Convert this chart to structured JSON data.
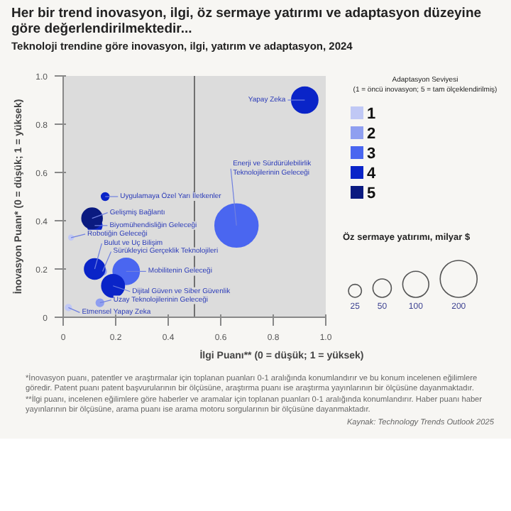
{
  "chart_data": {
    "type": "bubble",
    "title": "Her bir trend inovasyon, ilgi, öz sermaye yatırımı ve adaptasyon düzeyine göre değerlendirilmektedir...",
    "subtitle": "Teknoloji trendine göre inovasyon, ilgi, yatırım ve adaptasyon, 2024",
    "xlabel": "İlgi Puanı** (0 = düşük; 1 = yüksek)",
    "ylabel": "İnovasyon Puanı* (0 = düşük; 1 = yüksek)",
    "legend_title": "Adaptasyon Seviyesi\n(1 = öncü inovasyon; 5 = tam ölçeklendirilmiş)",
    "xlim": [
      0,
      1
    ],
    "ylim": [
      0,
      1
    ],
    "xticks": [
      0,
      0.2,
      0.4,
      0.6,
      0.8,
      {
        "value": 1,
        "label": "1.0"
      }
    ],
    "yticks": [
      0,
      0.2,
      0.4,
      0.6,
      0.8,
      {
        "value": 1,
        "label": "1.0"
      }
    ],
    "grid": false,
    "legend": "right",
    "size_legend": [
      25,
      50,
      100,
      200
    ],
    "ref_lines": [
      {
        "axis": "x",
        "value": 0.5,
        "color": "#707070"
      }
    ],
    "series": [
      {
        "name": "1",
        "color": "#c0c8f5",
        "x": [
          0.03,
          0.02
        ],
        "values": [
          0.33,
          0.04
        ],
        "sizes": [
          3,
          5
        ]
      },
      {
        "name": "2",
        "color": "#8f9ff0",
        "x": [
          0.15,
          0.14
        ],
        "values": [
          0.19,
          0.06
        ],
        "sizes": [
          8,
          8
        ]
      },
      {
        "name": "3",
        "color": "#4a66f0",
        "x": [
          0.66,
          0.24
        ],
        "values": [
          0.38,
          0.19
        ],
        "sizes": [
          270,
          100
        ]
      },
      {
        "name": "4",
        "color": "#0a24c8",
        "x": [
          0.92,
          0.16,
          0.12,
          0.12,
          0.19
        ],
        "values": [
          0.9,
          0.5,
          0.38,
          0.2,
          0.13
        ],
        "sizes": [
          100,
          8,
          30,
          60,
          75
        ]
      },
      {
        "name": "5",
        "color": "#0a1a80",
        "x": [
          0.11
        ],
        "values": [
          0.41
        ],
        "sizes": [
          60
        ]
      }
    ],
    "annotations": [
      "Öz sermaye yatırımı, milyar $",
      "*İnovasyon puanı, patentler ve araştırmalar için toplanan puanları 0-1 aralığında konumlandırır ve bu konum incelenen eğilimlere göredir. Patent puanı patent başvurularının bir ölçüsüne, araştırma puanı ise araştırma yayınlarının bir ölçüsüne dayanmaktadır.",
      "**İlgi puanı, incelenen eğilimlere göre haberler ve aramalar için toplanan puanları 0-1 aralığında konumlandırır. Haber puanı haber yayınlarının bir ölçüsüne, arama puanı ise arama motoru sorgularının bir ölçüsüne dayanmaktadır.",
      "Kaynak: Technology Trends Outlook 2025",
      {
        "text": "Yapay Zeka",
        "x": 0.92,
        "y": 0.9
      },
      {
        "text": "Enerji ve Sürdürülebilirlik\nTeknolojilerinin Geleceği",
        "x": 0.66,
        "y": 0.38
      },
      {
        "text": "Uygulamaya Özel Yarı İletkenler",
        "x": 0.16,
        "y": 0.5
      },
      {
        "text": "Gelişmiş Bağlantı",
        "x": 0.11,
        "y": 0.41
      },
      {
        "text": "Biyomühendisliğin Geleceği",
        "x": 0.12,
        "y": 0.38
      },
      {
        "text": "Robotiğin Geleceği",
        "x": 0.03,
        "y": 0.33
      },
      {
        "text": "Bulut ve Uç Bilişim",
        "x": 0.12,
        "y": 0.2
      },
      {
        "text": "Sürükleyici Gerçeklik Teknolojileri",
        "x": 0.15,
        "y": 0.19
      },
      {
        "text": "Mobilitenin Geleceği",
        "x": 0.24,
        "y": 0.19
      },
      {
        "text": "Dijital Güven ve Siber Güvenlik",
        "x": 0.19,
        "y": 0.13
      },
      {
        "text": "Uzay Teknolojilerinin Geleceği",
        "x": 0.14,
        "y": 0.06
      },
      {
        "text": "Etmensel Yapay Zeka",
        "x": 0.02,
        "y": 0.04
      }
    ]
  }
}
